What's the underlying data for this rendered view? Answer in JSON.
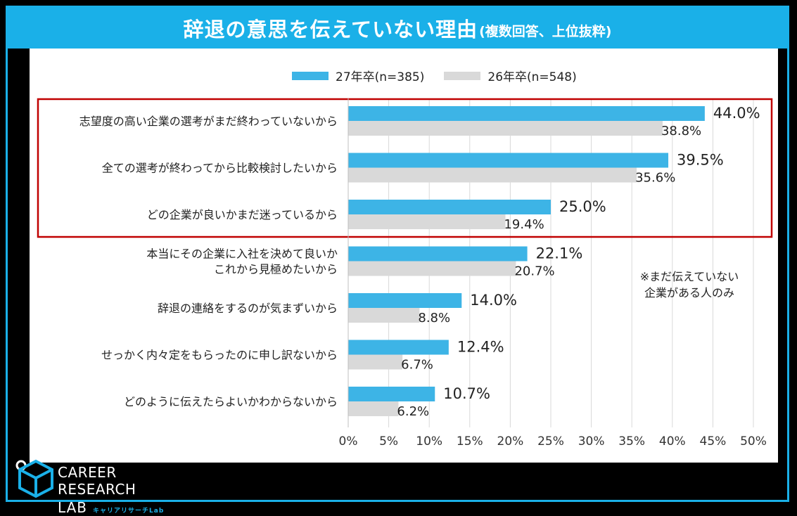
{
  "header": {
    "title": "辞退の意思を伝えていない理由",
    "subtitle": "(複数回答、上位抜粋)"
  },
  "note": {
    "line1": "※まだ伝えていない",
    "line2": "企業がある人のみ"
  },
  "logo": {
    "line1": "CAREER RESEARCH",
    "line2": "LAB",
    "sub": "キャリアリサーチLab"
  },
  "colors": {
    "accent": "#1ab0e8",
    "series1": "#3db4e6",
    "series2": "#d9d9d9",
    "highlight_box": "#c00000"
  },
  "chart_data": {
    "type": "bar",
    "orientation": "horizontal",
    "categories": [
      [
        "志望度の高い企業の選考がまだ終わっていないから"
      ],
      [
        "全ての選考が終わってから比較検討したいから"
      ],
      [
        "どの企業が良いかまだ迷っているから"
      ],
      [
        "本当にその企業に入社を決めて良いか",
        "これから見極めたいから"
      ],
      [
        "辞退の連絡をするのが気まずいから"
      ],
      [
        "せっかく内々定をもらったのに申し訳ないから"
      ],
      [
        "どのように伝えたらよいかわからないから"
      ]
    ],
    "series": [
      {
        "name": "27年卒(n=385)",
        "values": [
          44.0,
          39.5,
          25.0,
          22.1,
          14.0,
          12.4,
          10.7
        ],
        "labels": [
          "44.0%",
          "39.5%",
          "25.0%",
          "22.1%",
          "14.0%",
          "12.4%",
          "10.7%"
        ]
      },
      {
        "name": "26年卒(n=548)",
        "values": [
          38.8,
          35.6,
          19.4,
          20.7,
          8.8,
          6.7,
          6.2
        ],
        "labels": [
          "38.8%",
          "35.6%",
          "19.4%",
          "20.7%",
          "8.8%",
          "6.7%",
          "6.2%"
        ]
      }
    ],
    "xlim": [
      0,
      50
    ],
    "xticks": [
      "0%",
      "5%",
      "10%",
      "15%",
      "20%",
      "25%",
      "30%",
      "35%",
      "40%",
      "45%",
      "50%"
    ],
    "grid": true,
    "legend_position": "top",
    "highlighted_categories": [
      0,
      1,
      2
    ]
  }
}
